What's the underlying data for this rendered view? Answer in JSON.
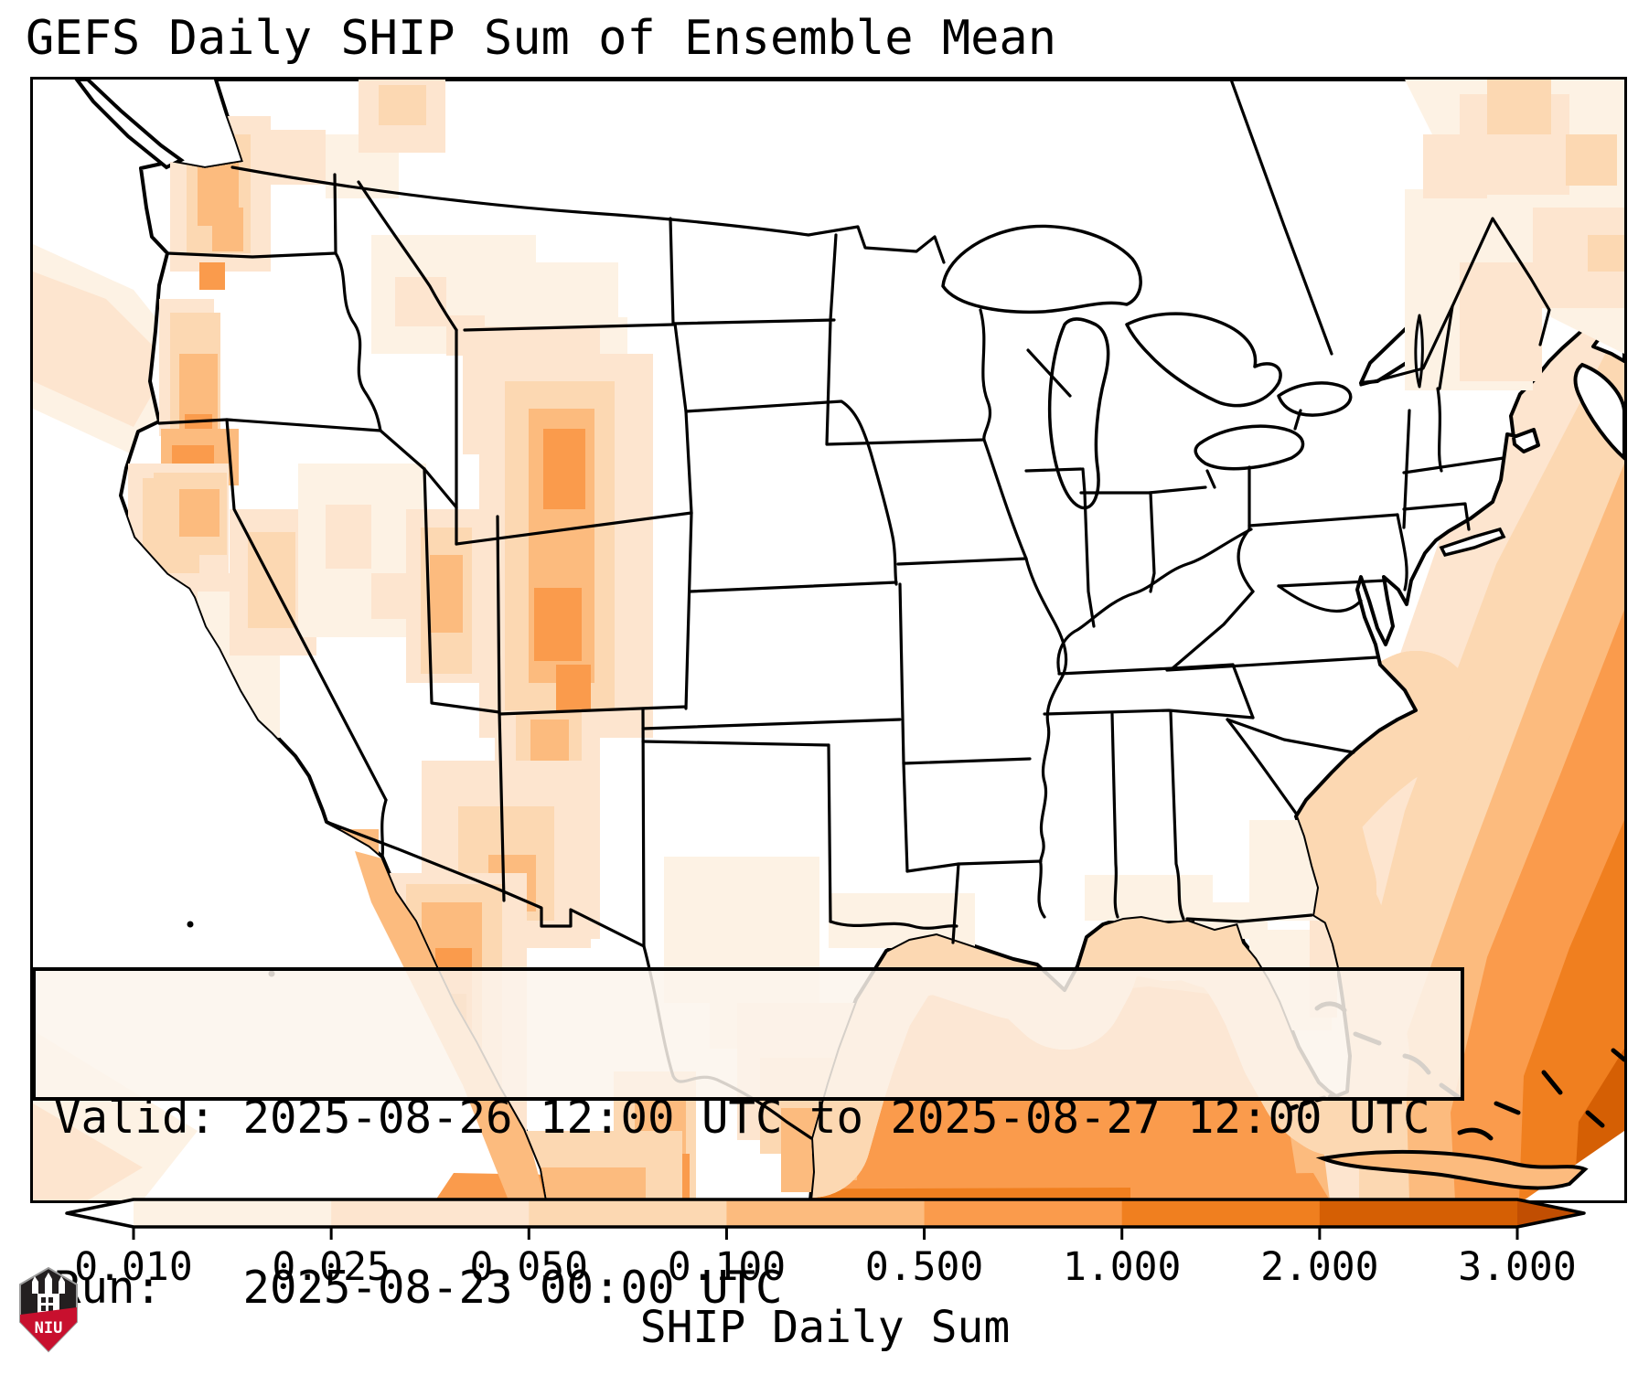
{
  "title": "GEFS Daily SHIP Sum of Ensemble Mean",
  "info_box": {
    "line1": "Valid: 2025-08-26 12:00 UTC to 2025-08-27 12:00 UTC",
    "line2": "Run:   2025-08-23 00:00 UTC"
  },
  "colorbar": {
    "label": "SHIP Daily Sum",
    "tick_labels": [
      "0.010",
      "0.025",
      "0.050",
      "0.100",
      "0.500",
      "1.000",
      "2.000",
      "3.000"
    ],
    "segment_colors": [
      "#fdf2e4",
      "#fde5cf",
      "#fcd8b2",
      "#fcbb7e",
      "#fa9b4c",
      "#f07f1f",
      "#d55f04"
    ],
    "under_color": "#ffffff",
    "over_color": "#c14e02",
    "outline_color": "#000000"
  },
  "logo": {
    "text": "NIU",
    "shield_dark": "#231f20",
    "shield_red": "#c8102e"
  },
  "chart_data": {
    "type": "heatmap",
    "title": "GEFS Daily SHIP Sum of Ensemble Mean",
    "variable": "SHIP Daily Sum",
    "model": "GEFS",
    "valid_period": "2025-08-26 12:00 UTC to 2025-08-27 12:00 UTC",
    "run_time": "2025-08-23 00:00 UTC",
    "colormap": "Oranges (discrete)",
    "levels": [
      0.01,
      0.025,
      0.05,
      0.1,
      0.5,
      1.0,
      2.0,
      3.0
    ],
    "level_colors": [
      "#fdf2e4",
      "#fde5cf",
      "#fcd8b2",
      "#fcbb7e",
      "#fa9b4c",
      "#f07f1f",
      "#d55f04"
    ],
    "extend": "both",
    "region": "Continental United States, northern Mexico, Gulf of Mexico, western Atlantic",
    "notable_values": [
      {
        "area": "Subtropical western Atlantic / Bahamas toward SE corner",
        "approx_value": "1.0 - 3.0"
      },
      {
        "area": "Gulf of Mexico open water",
        "approx_value": "0.1 - 1.0"
      },
      {
        "area": "Baja California and Sierra Madre Occidental (Mexico)",
        "approx_value": "0.5 - 2.0"
      },
      {
        "area": "Colorado Rockies into Wyoming / New Mexico",
        "approx_value": "0.1 - 1.0"
      },
      {
        "area": "Washington / Oregon Cascades",
        "approx_value": "0.1 - 1.0"
      },
      {
        "area": "Southeast Arizona",
        "approx_value": "0.05 - 0.5"
      },
      {
        "area": "Maine / Canadian Maritimes",
        "approx_value": "0.01 - 0.1"
      },
      {
        "area": "Central and eastern CONUS interior",
        "approx_value": "< 0.01"
      }
    ]
  }
}
